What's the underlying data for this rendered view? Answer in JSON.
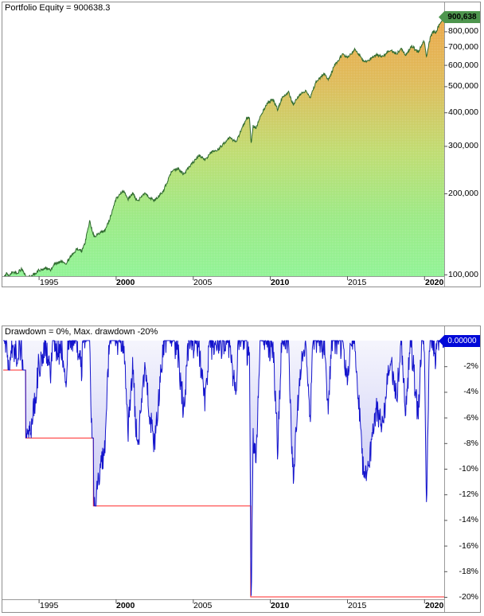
{
  "window": {
    "background": "#FFFFFF",
    "pane_border_color": "#8E8E8E",
    "divider_color": "#9A9A9A",
    "tick_color": "#555555"
  },
  "chart_data": [
    {
      "type": "area",
      "name": "Portfolio Equity",
      "title": "Portfolio Equity = 900638.3",
      "y_scale": "log",
      "grid": "off",
      "x_range": [
        1992.7,
        2021.3
      ],
      "y_range": [
        98500,
        1025000
      ],
      "x_ticks": [
        {
          "v": 1995,
          "label": "1995",
          "bold": false
        },
        {
          "v": 2000,
          "label": "2000",
          "bold": true
        },
        {
          "v": 2005,
          "label": "2005",
          "bold": false
        },
        {
          "v": 2010,
          "label": "2010",
          "bold": true
        },
        {
          "v": 2015,
          "label": "2015",
          "bold": false
        },
        {
          "v": 2020,
          "label": "2020",
          "bold": true
        }
      ],
      "y_ticks": [
        {
          "v": 800000,
          "label": "800,000"
        },
        {
          "v": 700000,
          "label": "700,000"
        },
        {
          "v": 600000,
          "label": "600,000"
        },
        {
          "v": 500000,
          "label": "500,000"
        },
        {
          "v": 400000,
          "label": "400,000"
        },
        {
          "v": 300000,
          "label": "300,000"
        },
        {
          "v": 200000,
          "label": "200,000"
        },
        {
          "v": 100000,
          "label": "100,000"
        }
      ],
      "last_value": 900638.3,
      "last_value_label": "900,638",
      "points_per_year": 38,
      "noise_amp": 0.012,
      "series": [
        {
          "name": "equity",
          "anchors_x": [
            1992.7,
            1992.9,
            1993.1,
            1993.3,
            1993.6,
            1993.9,
            1994.2,
            1994.5,
            1994.8,
            1995.0,
            1995.5,
            1995.8,
            1996.0,
            1996.5,
            1996.8,
            1997.0,
            1997.5,
            1997.8,
            1998.0,
            1998.3,
            1998.6,
            1998.9,
            1999.3,
            1999.6,
            2000.0,
            2000.5,
            2000.8,
            2001.1,
            2001.4,
            2001.9,
            2002.2,
            2002.5,
            2002.8,
            2003.1,
            2003.6,
            2004.0,
            2004.4,
            2004.8,
            2005.4,
            2005.8,
            2006.2,
            2006.6,
            2007.0,
            2007.4,
            2007.8,
            2008.1,
            2008.5,
            2008.68,
            2008.78,
            2008.9,
            2009.1,
            2009.4,
            2009.8,
            2010.2,
            2010.5,
            2010.8,
            2011.2,
            2011.5,
            2011.9,
            2012.3,
            2012.6,
            2013.0,
            2013.5,
            2013.8,
            2014.2,
            2014.7,
            2015.1,
            2015.5,
            2016.1,
            2016.5,
            2016.9,
            2017.3,
            2017.8,
            2018.2,
            2018.5,
            2018.8,
            2019.2,
            2019.6,
            2020.0,
            2020.15,
            2020.4,
            2020.6,
            2020.75,
            2020.9,
            2021.05,
            2021.3
          ],
          "anchors_y": [
            97000,
            100500,
            99000,
            102500,
            101000,
            105000,
            97300,
            98500,
            101000,
            103500,
            105500,
            104000,
            109200,
            112000,
            110000,
            115000,
            124800,
            122000,
            130000,
            158000,
            137600,
            142300,
            145200,
            160000,
            190000,
            205000,
            190000,
            200000,
            187000,
            201000,
            193000,
            188000,
            196000,
            205000,
            239000,
            248000,
            236000,
            252000,
            277000,
            266000,
            284000,
            290000,
            306000,
            322000,
            310000,
            340000,
            382000,
            380000,
            306000,
            355000,
            350000,
            390000,
            430000,
            448000,
            410000,
            455000,
            475000,
            429000,
            465000,
            480000,
            455000,
            520000,
            557000,
            530000,
            600000,
            656000,
            640000,
            690000,
            615000,
            630000,
            655000,
            645000,
            680000,
            660000,
            690000,
            650000,
            705000,
            670000,
            740000,
            645000,
            760000,
            800000,
            785000,
            830000,
            855000,
            900638.3
          ]
        }
      ],
      "colors": {
        "line": "#2F6B2F",
        "fill_gradient": [
          [
            0,
            "#EFA243"
          ],
          [
            0.3,
            "#DDBB58"
          ],
          [
            0.55,
            "#BEDC6F"
          ],
          [
            0.78,
            "#9BE983"
          ],
          [
            1,
            "#8FF394"
          ]
        ],
        "tag_bg": "#4E964E",
        "tag_text": "#000000"
      }
    },
    {
      "type": "area",
      "name": "Drawdown",
      "title": "Drawdown = 0%, Max. drawdown -20%",
      "derived_from": "percent drawdown of Portfolio Equity from running peak",
      "grid": "off",
      "x_range": [
        1992.7,
        2021.3
      ],
      "y_range": [
        0,
        -20
      ],
      "x_ticks": [
        {
          "v": 1995,
          "label": "1995",
          "bold": false
        },
        {
          "v": 2000,
          "label": "2000",
          "bold": true
        },
        {
          "v": 2005,
          "label": "2005",
          "bold": false
        },
        {
          "v": 2010,
          "label": "2010",
          "bold": true
        },
        {
          "v": 2015,
          "label": "2015",
          "bold": false
        },
        {
          "v": 2020,
          "label": "2020",
          "bold": true
        }
      ],
      "y_ticks": [
        {
          "v": -2,
          "label": "-2%"
        },
        {
          "v": -4,
          "label": "-4%"
        },
        {
          "v": -6,
          "label": "-6%"
        },
        {
          "v": -8,
          "label": "-8%"
        },
        {
          "v": -10,
          "label": "-10%"
        },
        {
          "v": -12,
          "label": "-12%"
        },
        {
          "v": -14,
          "label": "-14%"
        },
        {
          "v": -16,
          "label": "-16%"
        },
        {
          "v": -18,
          "label": "-18%"
        },
        {
          "v": -20,
          "label": "-20%"
        }
      ],
      "current_value": 0,
      "current_value_label": "0.00000",
      "max_drawdown": -20,
      "max_drawdown_steps": [
        [
          1992.7,
          -2.3
        ],
        [
          1994.16,
          -7.6
        ],
        [
          1998.55,
          -12.9
        ],
        [
          2008.75,
          -20
        ],
        [
          2021.3,
          -20
        ]
      ],
      "colors": {
        "line": "#1414CC",
        "fill_gradient": [
          [
            0,
            "#8888E6",
            0.05
          ],
          [
            0.4,
            "#8888E6",
            0.3
          ],
          [
            0.75,
            "#8282E4",
            0.5
          ],
          [
            1,
            "#7C7CE2",
            0.62
          ]
        ],
        "max_line": "#FF2A2A",
        "tag_bg": "#0008D8",
        "tag_text": "#FFFFFF"
      }
    }
  ]
}
